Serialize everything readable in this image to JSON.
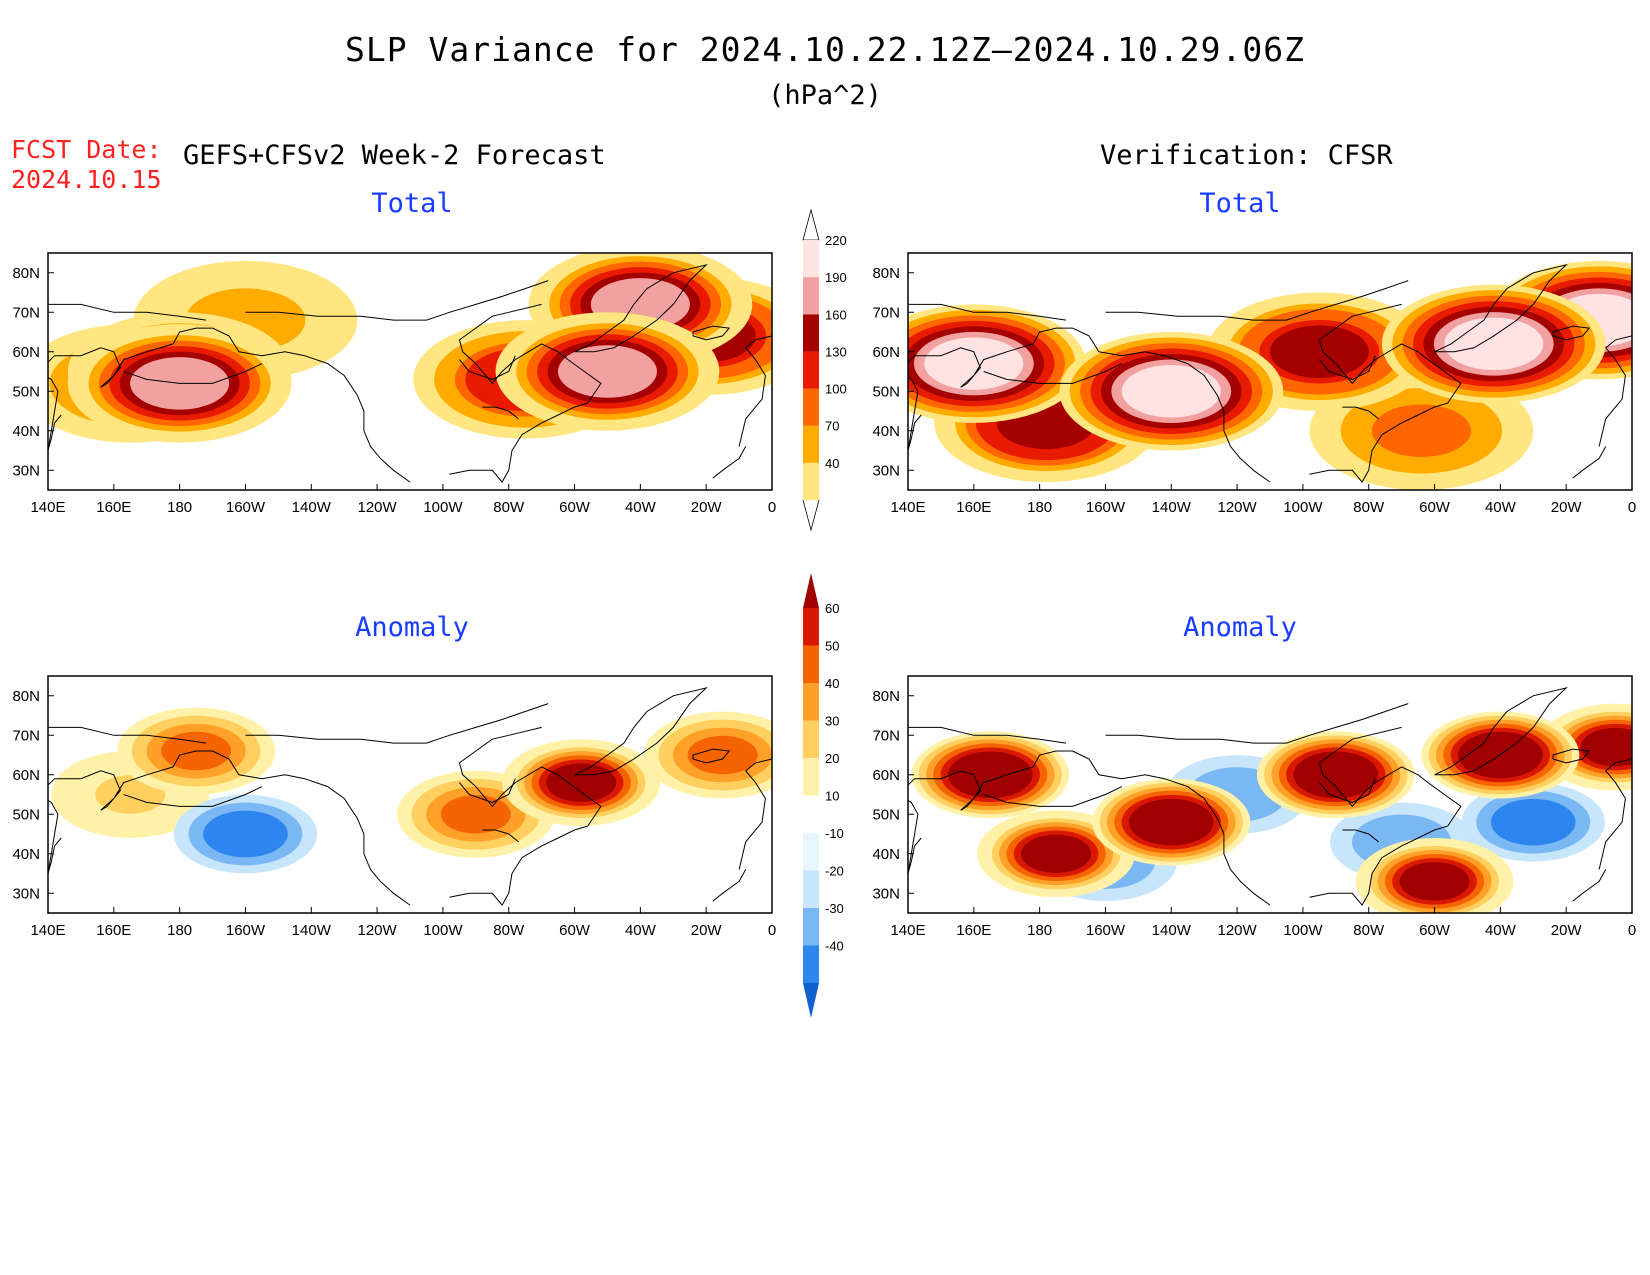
{
  "title": "SLP Variance for 2024.10.22.12Z—2024.10.29.06Z",
  "units": "(hPa^2)",
  "fcst_label": "FCST Date:",
  "fcst_date": "2024.10.15",
  "forecast_title": "GEFS+CFSv2 Week-2 Forecast",
  "verification_title": "Verification: CFSR",
  "panels": [
    {
      "id": "fc-total",
      "label": "Total"
    },
    {
      "id": "ver-total",
      "label": "Total"
    },
    {
      "id": "fc-anom",
      "label": "Anomaly"
    },
    {
      "id": "ver-anom",
      "label": "Anomaly"
    }
  ],
  "x_ticks": [
    "140E",
    "160E",
    "180",
    "160W",
    "140W",
    "120W",
    "100W",
    "80W",
    "60W",
    "40W",
    "20W",
    "0"
  ],
  "y_ticks": [
    "30N",
    "40N",
    "50N",
    "60N",
    "70N",
    "80N"
  ],
  "map_extent": {
    "lon_min": 140,
    "lon_max": 360,
    "lat_min": 25,
    "lat_max": 85
  },
  "total_colorbar": {
    "levels": [
      40,
      70,
      100,
      130,
      160,
      190,
      220
    ],
    "colors": [
      "#ffe680",
      "#ffab00",
      "#ff6600",
      "#e81a00",
      "#a50000",
      "#f2a0a0",
      "#ffe3e3"
    ]
  },
  "anomaly_colorbar": {
    "levels": [
      -40,
      -30,
      -20,
      -10,
      10,
      20,
      30,
      40,
      50,
      60
    ],
    "colors": [
      "#1060d0",
      "#2f85f0",
      "#7ab8f5",
      "#c7e6fb",
      "#e8f6fe",
      "#ffffff",
      "#fff2a8",
      "#ffd060",
      "#ffa028",
      "#f56400",
      "#d81800",
      "#a00000"
    ]
  },
  "chart_data": [
    {
      "type": "heatmap",
      "name_ref": "fc-total",
      "field": "SLP variance total",
      "blobs": [
        {
          "lon": 180,
          "lat": 52,
          "value": 200
        },
        {
          "lon": 180,
          "lat": 55,
          "value": 150
        },
        {
          "lon": 165,
          "lat": 52,
          "value": 110
        },
        {
          "lon": 310,
          "lat": 55,
          "value": 200
        },
        {
          "lon": 285,
          "lat": 53,
          "value": 150
        },
        {
          "lon": 320,
          "lat": 72,
          "value": 190
        },
        {
          "lon": 340,
          "lat": 64,
          "value": 160
        },
        {
          "lon": 200,
          "lat": 68,
          "value": 80
        }
      ]
    },
    {
      "type": "heatmap",
      "name_ref": "ver-total",
      "field": "SLP variance total",
      "blobs": [
        {
          "lon": 160,
          "lat": 57,
          "value": 230
        },
        {
          "lon": 220,
          "lat": 50,
          "value": 230
        },
        {
          "lon": 182,
          "lat": 42,
          "value": 180
        },
        {
          "lon": 265,
          "lat": 60,
          "value": 160
        },
        {
          "lon": 318,
          "lat": 62,
          "value": 230
        },
        {
          "lon": 350,
          "lat": 68,
          "value": 220
        },
        {
          "lon": 296,
          "lat": 40,
          "value": 110
        }
      ]
    },
    {
      "type": "heatmap",
      "name_ref": "fc-anom",
      "field": "SLP variance anomaly",
      "blobs": [
        {
          "lon": 185,
          "lat": 66,
          "value": 45
        },
        {
          "lon": 165,
          "lat": 55,
          "value": 20
        },
        {
          "lon": 200,
          "lat": 45,
          "value": -40
        },
        {
          "lon": 270,
          "lat": 50,
          "value": 45
        },
        {
          "lon": 302,
          "lat": 58,
          "value": 60
        },
        {
          "lon": 345,
          "lat": 65,
          "value": 40
        },
        {
          "lon": 250,
          "lat": 70,
          "value": -10
        }
      ]
    },
    {
      "type": "heatmap",
      "name_ref": "ver-anom",
      "field": "SLP variance anomaly",
      "blobs": [
        {
          "lon": 165,
          "lat": 60,
          "value": 70
        },
        {
          "lon": 220,
          "lat": 48,
          "value": 70
        },
        {
          "lon": 185,
          "lat": 40,
          "value": 65
        },
        {
          "lon": 270,
          "lat": 60,
          "value": 70
        },
        {
          "lon": 320,
          "lat": 65,
          "value": 70
        },
        {
          "lon": 355,
          "lat": 67,
          "value": 60
        },
        {
          "lon": 240,
          "lat": 55,
          "value": -30
        },
        {
          "lon": 330,
          "lat": 48,
          "value": -35
        },
        {
          "lon": 200,
          "lat": 38,
          "value": -30
        },
        {
          "lon": 300,
          "lat": 33,
          "value": 60
        },
        {
          "lon": 290,
          "lat": 43,
          "value": -30
        }
      ]
    }
  ]
}
